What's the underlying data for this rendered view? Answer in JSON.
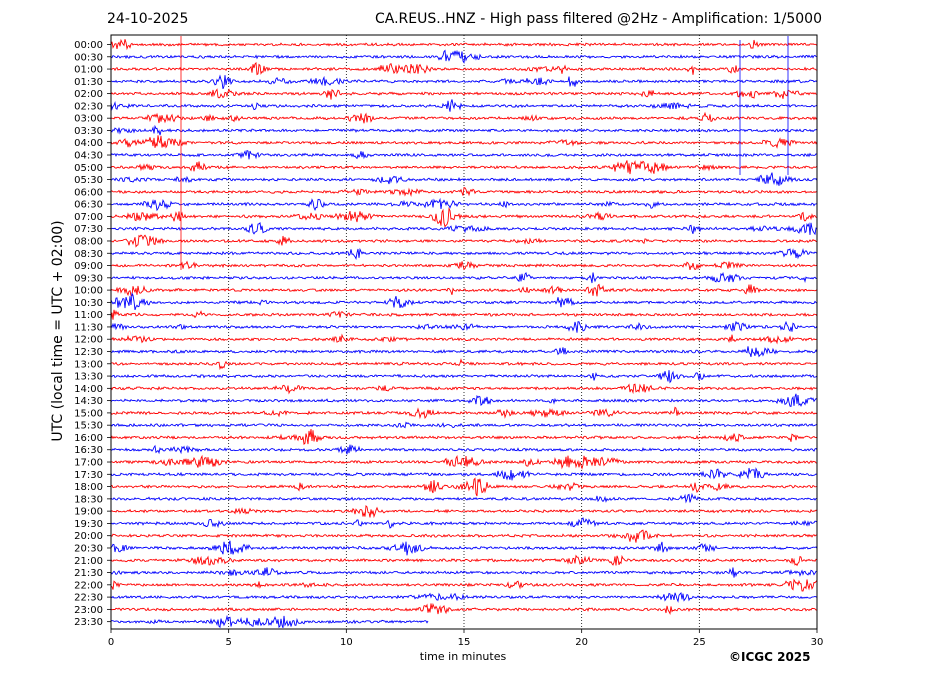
{
  "header": {
    "date": "24-10-2025",
    "title": "CA.REUS..HNZ - High pass filtered @2Hz - Amplification: 1/5000"
  },
  "footer": {
    "credit": "©ICGC 2025"
  },
  "colors": {
    "trace_red": "#ff0000",
    "trace_blue": "#0000ff",
    "axis": "#000000",
    "grid": "#000000"
  },
  "chart_data": {
    "type": "helicorder",
    "xlabel": "time in minutes",
    "ylabel": "UTC (local time = UTC + 02:00)",
    "xlim": [
      0,
      30
    ],
    "xticks": [
      "0",
      "5",
      "10",
      "15",
      "20",
      "25",
      "30"
    ],
    "xtick_values": [
      0,
      5,
      10,
      15,
      20,
      25,
      30
    ],
    "vertical_grid_dotted_at_minutes": [
      5,
      10,
      15,
      20,
      25
    ],
    "rows": [
      "00:00",
      "00:30",
      "01:00",
      "01:30",
      "02:00",
      "02:30",
      "03:00",
      "03:30",
      "04:00",
      "04:30",
      "05:00",
      "05:30",
      "06:00",
      "06:30",
      "07:00",
      "07:30",
      "08:00",
      "08:30",
      "09:00",
      "09:30",
      "10:00",
      "10:30",
      "11:00",
      "11:30",
      "12:00",
      "12:30",
      "13:00",
      "13:30",
      "14:00",
      "14:30",
      "15:00",
      "15:30",
      "16:00",
      "16:30",
      "17:00",
      "17:30",
      "18:00",
      "18:30",
      "19:00",
      "19:30",
      "20:00",
      "20:30",
      "21:00",
      "21:30",
      "22:00",
      "22:30",
      "23:00",
      "23:30"
    ],
    "row_colors_pattern": [
      "red",
      "blue"
    ],
    "row_interval_minutes": 30,
    "last_row_partial_end_minute": 13.5
  }
}
